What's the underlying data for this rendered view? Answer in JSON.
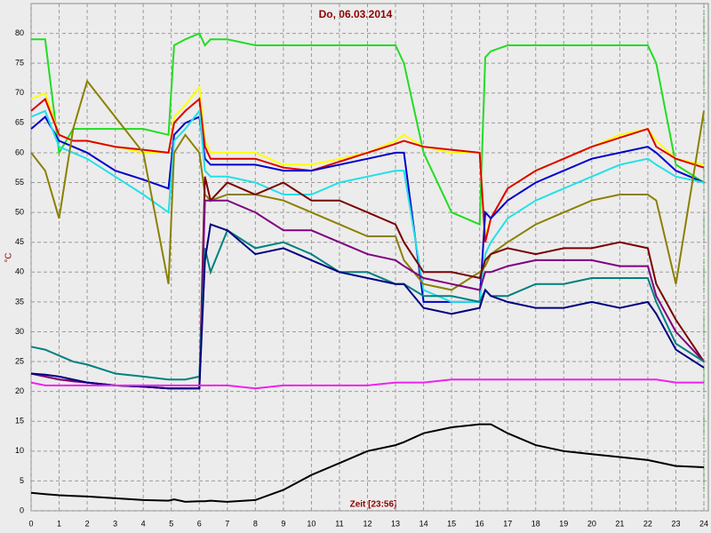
{
  "chart_data": {
    "type": "line",
    "title": "Do, 06.03.2014",
    "ylabel": "°C",
    "xlabel": "Zeit [23:56]",
    "xlim": [
      0,
      24
    ],
    "ylim": [
      0,
      85
    ],
    "grid": true,
    "xticks": [
      0,
      1,
      2,
      3,
      4,
      5,
      6,
      7,
      8,
      9,
      10,
      11,
      12,
      13,
      14,
      15,
      16,
      17,
      18,
      19,
      20,
      21,
      22,
      23,
      24
    ],
    "yticks": [
      0,
      5,
      10,
      15,
      20,
      25,
      30,
      35,
      40,
      45,
      50,
      55,
      60,
      65,
      70,
      75,
      80
    ],
    "x": [
      0,
      0.5,
      1,
      1.5,
      2,
      3,
      4,
      4.9,
      5.1,
      5.5,
      6,
      6.2,
      6.4,
      7,
      8,
      9,
      10,
      11,
      12,
      13,
      13.3,
      14,
      15,
      16,
      16.2,
      16.4,
      17,
      18,
      19,
      20,
      21,
      22,
      22.3,
      23,
      24
    ],
    "series": [
      {
        "color": "#22dd22",
        "values": [
          79,
          79,
          60,
          64,
          64,
          64,
          64,
          63,
          78,
          79,
          80,
          78,
          79,
          79,
          78,
          78,
          78,
          78,
          78,
          78,
          75,
          60,
          50,
          48,
          76,
          77,
          78,
          78,
          78,
          78,
          78,
          78,
          75,
          58,
          55
        ]
      },
      {
        "color": "#ffff00",
        "values": [
          69,
          70,
          63,
          62,
          62,
          61,
          60,
          60,
          66,
          68,
          71,
          62,
          60,
          60,
          60,
          58,
          58,
          59,
          60,
          62,
          63,
          61,
          60,
          60,
          46,
          49,
          54,
          57,
          59,
          61,
          63,
          64,
          62,
          59,
          58
        ]
      },
      {
        "color": "#dd0000",
        "values": [
          67,
          69,
          63,
          62,
          62,
          61,
          60.5,
          60,
          65,
          67,
          69,
          61,
          59,
          59,
          59,
          57.5,
          57,
          58.5,
          60,
          61.5,
          62,
          61,
          60.5,
          60,
          45,
          49,
          54,
          57,
          59,
          61,
          62.5,
          64,
          61,
          59,
          57.5
        ]
      },
      {
        "color": "#0000cc",
        "values": [
          64,
          66,
          62,
          61,
          60,
          57,
          55.5,
          54,
          63,
          65,
          66,
          59,
          58,
          58,
          58,
          57,
          57,
          58,
          59,
          60,
          60,
          35,
          35,
          35,
          50,
          49,
          52,
          55,
          57,
          59,
          60,
          61,
          60,
          57,
          55
        ]
      },
      {
        "color": "#22e0e8",
        "values": [
          66,
          67,
          61,
          60,
          59,
          56,
          53,
          50,
          62,
          64,
          67,
          57,
          56,
          56,
          55,
          53,
          53,
          55,
          56,
          57,
          57,
          37,
          35,
          35,
          43,
          45,
          49,
          52,
          54,
          56,
          58,
          59,
          58,
          56,
          55
        ]
      },
      {
        "color": "#8b8000",
        "values": [
          60,
          57,
          49,
          64,
          72,
          66,
          60,
          38,
          60,
          63,
          60,
          53,
          52,
          53,
          53,
          52,
          50,
          48,
          46,
          46,
          42,
          38,
          37,
          40,
          41,
          43,
          45,
          48,
          50,
          52,
          53,
          53,
          52,
          38,
          67
        ]
      },
      {
        "color": "#7a0000",
        "values": [
          23,
          22.5,
          22,
          21.8,
          21.5,
          21,
          20.8,
          20.5,
          20.5,
          20.5,
          20.5,
          56,
          52,
          55,
          53,
          55,
          52,
          52,
          50,
          48,
          45,
          40,
          40,
          39,
          42,
          43,
          44,
          43,
          44,
          44,
          45,
          44,
          38,
          32,
          25
        ]
      },
      {
        "color": "#800080",
        "values": [
          23,
          22.5,
          22,
          21.7,
          21.5,
          21,
          20.8,
          20.5,
          20.5,
          20.5,
          20.5,
          52,
          52,
          52,
          50,
          47,
          47,
          45,
          43,
          42,
          41,
          39,
          38,
          37,
          40,
          40,
          41,
          42,
          42,
          42,
          41,
          41,
          36,
          30,
          25
        ]
      },
      {
        "color": "#008080",
        "values": [
          27.5,
          27,
          26,
          25,
          24.5,
          23,
          22.5,
          22,
          22,
          22,
          22.5,
          44,
          40,
          47,
          44,
          45,
          43,
          40,
          40,
          38,
          38,
          36,
          36,
          35,
          37,
          36,
          36,
          38,
          38,
          39,
          39,
          39,
          35,
          28,
          25
        ]
      },
      {
        "color": "#000080",
        "values": [
          23,
          22.8,
          22.5,
          22,
          21.5,
          21,
          20.8,
          20.5,
          20.5,
          20.5,
          20.5,
          42,
          48,
          47,
          43,
          44,
          42,
          40,
          39,
          38,
          38,
          34,
          33,
          34,
          37,
          36,
          35,
          34,
          34,
          35,
          34,
          35,
          33,
          27,
          24
        ]
      },
      {
        "color": "#ee22ee",
        "values": [
          21.5,
          21,
          21,
          21,
          21,
          21,
          21,
          21,
          21,
          21,
          21,
          21,
          21,
          21,
          20.5,
          21,
          21,
          21,
          21,
          21.5,
          21.5,
          21.5,
          22,
          22,
          22,
          22,
          22,
          22,
          22,
          22,
          22,
          22,
          22,
          21.5,
          21.5
        ]
      },
      {
        "color": "#000000",
        "values": [
          3,
          2.8,
          2.6,
          2.5,
          2.4,
          2.1,
          1.8,
          1.7,
          1.9,
          1.5,
          1.6,
          1.6,
          1.7,
          1.5,
          1.8,
          3.5,
          6,
          8,
          10,
          11,
          11.5,
          13,
          14,
          14.5,
          14.5,
          14.5,
          13,
          11,
          10,
          9.5,
          9,
          8.5,
          8.2,
          7.5,
          7.3
        ]
      }
    ]
  }
}
